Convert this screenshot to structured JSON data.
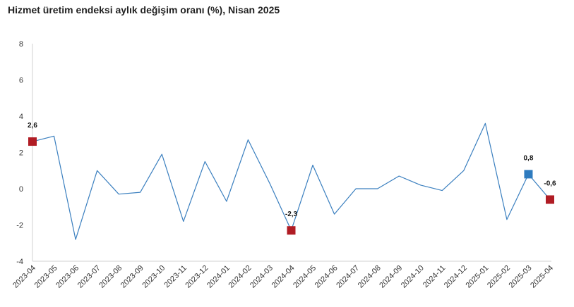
{
  "chart_data": {
    "type": "line",
    "title": "Hizmet üretim endeksi aylık değişim oranı (%), Nisan 2025",
    "xlabel": "",
    "ylabel": "",
    "ylim": [
      -4,
      8
    ],
    "yticks": [
      -4,
      -2,
      0,
      2,
      4,
      6,
      8
    ],
    "grid": false,
    "categories": [
      "2023-04",
      "2023-05",
      "2023-06",
      "2023-07",
      "2023-08",
      "2023-09",
      "2023-10",
      "2023-11",
      "2023-12",
      "2024-01",
      "2024-02",
      "2024-03",
      "2024-04",
      "2024-05",
      "2024-06",
      "2024-07",
      "2024-08",
      "2024-09",
      "2024-10",
      "2024-11",
      "2024-12",
      "2025-01",
      "2025-02",
      "2025-03",
      "2025-04"
    ],
    "series": [
      {
        "values": [
          2.6,
          2.9,
          -2.8,
          1.0,
          -0.3,
          -0.2,
          1.9,
          -1.8,
          1.5,
          -0.7,
          2.7,
          0.3,
          -2.3,
          1.3,
          -1.4,
          0.0,
          0.0,
          0.7,
          0.2,
          -0.1,
          1.0,
          3.6,
          -1.7,
          0.8,
          -0.6
        ],
        "color": "#3a7fbf"
      }
    ],
    "highlights": [
      {
        "category": "2023-04",
        "value": 2.6,
        "label": "2,6",
        "color": "#b01c24"
      },
      {
        "category": "2024-04",
        "value": -2.3,
        "label": "-2,3",
        "color": "#b01c24"
      },
      {
        "category": "2025-03",
        "value": 0.8,
        "label": "0,8",
        "color": "#2e7bbf"
      },
      {
        "category": "2025-04",
        "value": -0.6,
        "label": "-0,6",
        "color": "#b01c24"
      }
    ],
    "colors": {
      "line": "#3a7fbf",
      "axis": "#d0d0d0",
      "marker_red": "#b01c24",
      "marker_blue": "#2e7bbf"
    }
  }
}
